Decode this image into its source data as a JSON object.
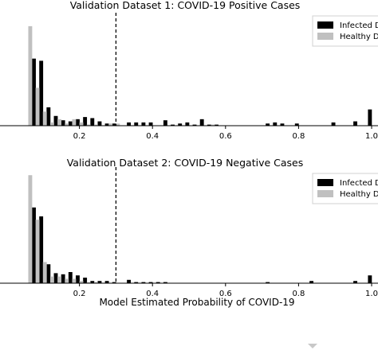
{
  "figure": {
    "xlabel": "Model Estimated Probability of COVID-19",
    "colors": {
      "infected": "#000000",
      "healthy": "#c0c0c0",
      "threshold": "#000000"
    }
  },
  "chart_data": [
    {
      "type": "bar",
      "title": "Validation Dataset 1: COVID-19 Positive Cases",
      "xlabel": "",
      "ylabel": "",
      "xlim": [
        0.0,
        1.0
      ],
      "ylim": [
        0,
        1.0
      ],
      "xticks": [
        "0.2",
        "0.4",
        "0.6",
        "0.8",
        "1.0"
      ],
      "threshold": 0.3,
      "legend": {
        "placement": "top-right",
        "entries": [
          "Infected D",
          "Healthy D"
        ]
      },
      "bin_width": 0.02,
      "series": [
        {
          "name": "Infected D",
          "x": [
            0.07,
            0.09,
            0.11,
            0.13,
            0.15,
            0.17,
            0.19,
            0.21,
            0.23,
            0.25,
            0.27,
            0.29,
            0.31,
            0.33,
            0.35,
            0.37,
            0.39,
            0.41,
            0.43,
            0.45,
            0.47,
            0.49,
            0.51,
            0.53,
            0.55,
            0.57,
            0.59,
            0.61,
            0.63,
            0.65,
            0.67,
            0.69,
            0.71,
            0.73,
            0.75,
            0.77,
            0.79,
            0.81,
            0.83,
            0.85,
            0.87,
            0.89,
            0.91,
            0.93,
            0.95,
            0.97,
            0.99
          ],
          "values": [
            0.62,
            0.6,
            0.17,
            0.09,
            0.05,
            0.04,
            0.06,
            0.08,
            0.07,
            0.04,
            0.02,
            0.02,
            0.0,
            0.03,
            0.03,
            0.03,
            0.03,
            0.0,
            0.05,
            0.01,
            0.02,
            0.03,
            0.01,
            0.06,
            0.01,
            0.01,
            0.0,
            0.0,
            0.0,
            0.0,
            0.0,
            0.0,
            0.02,
            0.03,
            0.02,
            0.0,
            0.02,
            0.0,
            0.0,
            0.0,
            0.0,
            0.03,
            0.0,
            0.0,
            0.04,
            0.0,
            0.15
          ]
        },
        {
          "name": "Healthy D",
          "x": [
            0.07,
            0.09,
            0.11,
            0.13,
            0.15,
            0.17,
            0.19,
            0.21,
            0.23,
            0.25,
            0.27,
            0.29,
            0.31,
            0.33,
            0.35,
            0.37,
            0.39,
            0.41,
            0.43,
            0.45,
            0.47,
            0.49,
            0.51,
            0.53,
            0.55,
            0.57,
            0.59,
            0.61,
            0.63,
            0.65,
            0.67,
            0.69,
            0.71,
            0.73,
            0.75,
            0.77,
            0.79,
            0.81,
            0.83,
            0.85,
            0.87,
            0.89,
            0.91,
            0.93,
            0.95,
            0.97,
            0.99
          ],
          "values": [
            0.92,
            0.35,
            0.13,
            0.03,
            0.06,
            0.02,
            0.06,
            0.03,
            0.01,
            0.01,
            0.0,
            0.02,
            0.02,
            0.0,
            0.0,
            0.0,
            0.0,
            0.0,
            0.0,
            0.0,
            0.0,
            0.0,
            0.0,
            0.0,
            0.0,
            0.01,
            0.0,
            0.0,
            0.0,
            0.0,
            0.0,
            0.0,
            0.0,
            0.0,
            0.0,
            0.0,
            0.0,
            0.0,
            0.0,
            0.0,
            0.0,
            0.0,
            0.0,
            0.0,
            0.0,
            0.0,
            0.0
          ]
        }
      ]
    },
    {
      "type": "bar",
      "title": "Validation Dataset 2: COVID-19 Negative Cases",
      "xlabel": "Model Estimated Probability of COVID-19",
      "ylabel": "",
      "xlim": [
        0.0,
        1.0
      ],
      "ylim": [
        0,
        1.0
      ],
      "xticks": [
        "0.2",
        "0.4",
        "0.6",
        "0.8",
        "1.0"
      ],
      "threshold": 0.3,
      "legend": {
        "placement": "top-right",
        "entries": [
          "Infected D",
          "Healthy D"
        ]
      },
      "bin_width": 0.02,
      "series": [
        {
          "name": "Infected D",
          "x": [
            0.07,
            0.09,
            0.11,
            0.13,
            0.15,
            0.17,
            0.19,
            0.21,
            0.23,
            0.25,
            0.27,
            0.29,
            0.31,
            0.33,
            0.35,
            0.37,
            0.39,
            0.41,
            0.43,
            0.45,
            0.47,
            0.49,
            0.51,
            0.53,
            0.55,
            0.57,
            0.59,
            0.61,
            0.63,
            0.65,
            0.67,
            0.69,
            0.71,
            0.73,
            0.75,
            0.77,
            0.79,
            0.81,
            0.83,
            0.85,
            0.87,
            0.89,
            0.91,
            0.93,
            0.95,
            0.97,
            0.99
          ],
          "values": [
            0.68,
            0.6,
            0.17,
            0.09,
            0.08,
            0.1,
            0.07,
            0.05,
            0.02,
            0.02,
            0.02,
            0.01,
            0.0,
            0.03,
            0.01,
            0.01,
            0.01,
            0.01,
            0.01,
            0.0,
            0.0,
            0.0,
            0.0,
            0.0,
            0.0,
            0.0,
            0.0,
            0.0,
            0.0,
            0.0,
            0.0,
            0.0,
            0.01,
            0.0,
            0.0,
            0.0,
            0.0,
            0.0,
            0.02,
            0.0,
            0.0,
            0.0,
            0.0,
            0.0,
            0.02,
            0.0,
            0.07
          ]
        },
        {
          "name": "Healthy D",
          "x": [
            0.07,
            0.09,
            0.11,
            0.13,
            0.15,
            0.17,
            0.19,
            0.21,
            0.23,
            0.25,
            0.27,
            0.29,
            0.31,
            0.33,
            0.35,
            0.37,
            0.39,
            0.41,
            0.43,
            0.45,
            0.47,
            0.49,
            0.51,
            0.53,
            0.55,
            0.57,
            0.59,
            0.61,
            0.63,
            0.65,
            0.67,
            0.69,
            0.71,
            0.73,
            0.75,
            0.77,
            0.79,
            0.81,
            0.83,
            0.85,
            0.87,
            0.89,
            0.91,
            0.93,
            0.95,
            0.97,
            0.99
          ],
          "values": [
            0.97,
            0.57,
            0.19,
            0.06,
            0.06,
            0.04,
            0.04,
            0.02,
            0.01,
            0.01,
            0.0,
            0.0,
            0.0,
            0.0,
            0.0,
            0.0,
            0.0,
            0.0,
            0.0,
            0.0,
            0.0,
            0.0,
            0.0,
            0.0,
            0.0,
            0.0,
            0.0,
            0.0,
            0.0,
            0.0,
            0.0,
            0.0,
            0.0,
            0.0,
            0.0,
            0.0,
            0.0,
            0.0,
            0.0,
            0.0,
            0.0,
            0.0,
            0.0,
            0.0,
            0.0,
            0.0,
            0.0
          ]
        }
      ]
    }
  ]
}
